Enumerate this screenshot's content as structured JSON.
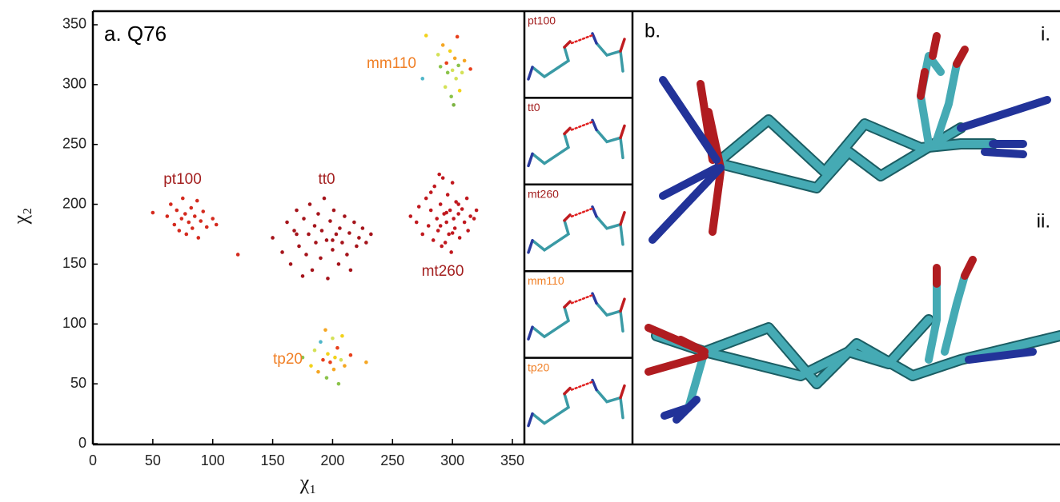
{
  "chart_data": {
    "type": "scatter",
    "title": "a. Q76",
    "x_label": "χ₁",
    "y_label": "χ₂",
    "xlim": [
      0,
      360
    ],
    "ylim": [
      0,
      360
    ],
    "xticks": [
      0,
      50,
      100,
      150,
      200,
      250,
      300,
      350
    ],
    "yticks": [
      0,
      50,
      100,
      150,
      200,
      250,
      300,
      350
    ],
    "grid": false,
    "series": [
      {
        "name": "pt100",
        "color": "#d42a1e",
        "label_color": "#a31f1f",
        "x": [
          50,
          62,
          65,
          68,
          70,
          72,
          74,
          75,
          77,
          78,
          80,
          82,
          83,
          85,
          87,
          88,
          90,
          92,
          95,
          100,
          103,
          121
        ],
        "values": [
          193,
          190,
          200,
          183,
          195,
          178,
          188,
          205,
          192,
          175,
          185,
          197,
          180,
          190,
          203,
          172,
          186,
          194,
          181,
          188,
          183,
          158
        ]
      },
      {
        "name": "tt0",
        "color": "#a5141b",
        "label_color": "#a31f1f",
        "x": [
          150,
          158,
          162,
          165,
          168,
          170,
          172,
          175,
          176,
          178,
          180,
          181,
          183,
          185,
          186,
          188,
          190,
          191,
          193,
          195,
          196,
          198,
          200,
          201,
          203,
          205,
          206,
          208,
          210,
          212,
          214,
          215,
          218,
          220,
          222,
          225,
          228,
          232,
          170,
          200
        ],
        "values": [
          172,
          160,
          185,
          150,
          178,
          195,
          165,
          140,
          188,
          158,
          175,
          200,
          145,
          182,
          168,
          192,
          155,
          178,
          205,
          170,
          138,
          186,
          162,
          195,
          175,
          150,
          180,
          168,
          190,
          158,
          176,
          145,
          185,
          165,
          172,
          180,
          168,
          175,
          175,
          170
        ]
      },
      {
        "name": "mt260",
        "color": "#c0181e",
        "label_color": "#a31f1f",
        "x": [
          265,
          270,
          272,
          275,
          278,
          280,
          282,
          284,
          285,
          287,
          288,
          290,
          291,
          292,
          293,
          295,
          296,
          297,
          298,
          299,
          300,
          301,
          302,
          303,
          305,
          306,
          308,
          310,
          312,
          313,
          315,
          318,
          320,
          282,
          290,
          295,
          300,
          305,
          289,
          294
        ],
        "values": [
          190,
          185,
          198,
          175,
          205,
          182,
          195,
          170,
          215,
          188,
          178,
          200,
          165,
          222,
          192,
          185,
          208,
          175,
          195,
          160,
          218,
          188,
          180,
          202,
          192,
          172,
          196,
          185,
          205,
          178,
          190,
          188,
          195,
          210,
          182,
          193,
          176,
          200,
          225,
          168
        ]
      },
      {
        "name": "mm110",
        "label_color": "#f07f25",
        "colors": [
          "#f2d21b",
          "#4fb6c9",
          "#d4e157",
          "#8bc34a",
          "#f5a623",
          "#d4e157",
          "#e8401c",
          "#8bc34a",
          "#f2d21b",
          "#8bc34a",
          "#d4e157",
          "#7cb342",
          "#f5a623",
          "#d4e157",
          "#e8401c",
          "#8bc34a",
          "#f2d21b",
          "#d4e157",
          "#f5a623",
          "#e8401c"
        ],
        "x": [
          278,
          275,
          288,
          290,
          292,
          294,
          295,
          296,
          298,
          299,
          300,
          301,
          302,
          303,
          304,
          305,
          306,
          308,
          310,
          315
        ],
        "values": [
          341,
          305,
          325,
          315,
          333,
          298,
          318,
          310,
          328,
          290,
          312,
          283,
          322,
          305,
          340,
          316,
          295,
          310,
          320,
          313
        ]
      },
      {
        "name": "tp20",
        "label_color": "#f07f25",
        "colors": [
          "#8bc34a",
          "#f2d21b",
          "#d4e157",
          "#f5a623",
          "#4fb6c9",
          "#e8401c",
          "#f5a623",
          "#8bc34a",
          "#f2d21b",
          "#e8401c",
          "#d4e157",
          "#f5a623",
          "#f2d21b",
          "#e8401c",
          "#8bc34a",
          "#d4e157",
          "#f2d21b",
          "#f5a623",
          "#e8401c",
          "#f5a623"
        ],
        "x": [
          175,
          182,
          185,
          188,
          190,
          192,
          194,
          195,
          196,
          198,
          200,
          201,
          202,
          204,
          205,
          207,
          208,
          210,
          215,
          228
        ],
        "values": [
          72,
          65,
          78,
          60,
          85,
          70,
          95,
          55,
          75,
          68,
          88,
          62,
          72,
          80,
          50,
          70,
          90,
          65,
          74,
          68
        ]
      }
    ],
    "panel_b": {
      "label": "b.",
      "views": [
        "i.",
        "ii."
      ]
    }
  }
}
